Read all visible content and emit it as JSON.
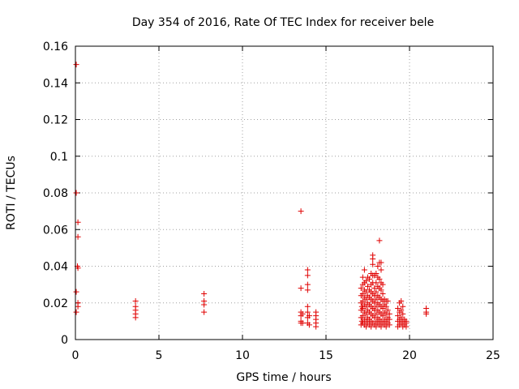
{
  "chart_data": {
    "type": "scatter",
    "title": "Day 354 of 2016, Rate Of TEC Index for receiver bele",
    "xlabel": "GPS time / hours",
    "ylabel": "ROTI / TECUs",
    "xlim": [
      0,
      25
    ],
    "ylim": [
      0,
      0.16
    ],
    "xticks": [
      0,
      5,
      10,
      15,
      20,
      25
    ],
    "yticks": [
      0,
      0.02,
      0.04,
      0.06,
      0.08,
      0.1,
      0.12,
      0.14,
      0.16
    ],
    "xtick_labels": [
      "0",
      "5",
      "10",
      "15",
      "20",
      "25"
    ],
    "ytick_labels": [
      "0",
      "0.02",
      "0.04",
      "0.06",
      "0.08",
      "0.1",
      "0.12",
      "0.14",
      "0.16"
    ],
    "grid": true,
    "marker": "+",
    "color": "#e00000",
    "points": [
      [
        0.05,
        0.15
      ],
      [
        0.05,
        0.08
      ],
      [
        0.05,
        0.026
      ],
      [
        0.05,
        0.015
      ],
      [
        0.15,
        0.064
      ],
      [
        0.15,
        0.056
      ],
      [
        0.12,
        0.04
      ],
      [
        0.15,
        0.039
      ],
      [
        0.15,
        0.02
      ],
      [
        0.15,
        0.018
      ],
      [
        3.6,
        0.021
      ],
      [
        3.6,
        0.018
      ],
      [
        3.6,
        0.016
      ],
      [
        3.6,
        0.014
      ],
      [
        3.6,
        0.012
      ],
      [
        7.7,
        0.025
      ],
      [
        7.7,
        0.021
      ],
      [
        7.7,
        0.019
      ],
      [
        7.7,
        0.015
      ],
      [
        13.5,
        0.07
      ],
      [
        13.5,
        0.028
      ],
      [
        13.5,
        0.015
      ],
      [
        13.5,
        0.013
      ],
      [
        13.5,
        0.01
      ],
      [
        13.5,
        0.009
      ],
      [
        13.6,
        0.014
      ],
      [
        13.6,
        0.009
      ],
      [
        13.9,
        0.038
      ],
      [
        13.9,
        0.035
      ],
      [
        13.9,
        0.03
      ],
      [
        13.9,
        0.027
      ],
      [
        13.9,
        0.018
      ],
      [
        13.9,
        0.015
      ],
      [
        13.9,
        0.012
      ],
      [
        13.9,
        0.009
      ],
      [
        14.0,
        0.008
      ],
      [
        14.0,
        0.013
      ],
      [
        14.4,
        0.015
      ],
      [
        14.4,
        0.013
      ],
      [
        14.4,
        0.011
      ],
      [
        14.4,
        0.009
      ],
      [
        14.4,
        0.007
      ],
      [
        17.1,
        0.008
      ],
      [
        17.1,
        0.012
      ],
      [
        17.1,
        0.016
      ],
      [
        17.1,
        0.02
      ],
      [
        17.1,
        0.024
      ],
      [
        17.1,
        0.028
      ],
      [
        17.15,
        0.01
      ],
      [
        17.15,
        0.018
      ],
      [
        17.2,
        0.009
      ],
      [
        17.2,
        0.013
      ],
      [
        17.2,
        0.017
      ],
      [
        17.2,
        0.021
      ],
      [
        17.2,
        0.025
      ],
      [
        17.2,
        0.03
      ],
      [
        17.2,
        0.034
      ],
      [
        17.3,
        0.008
      ],
      [
        17.3,
        0.011
      ],
      [
        17.3,
        0.015
      ],
      [
        17.3,
        0.019
      ],
      [
        17.3,
        0.023
      ],
      [
        17.3,
        0.027
      ],
      [
        17.3,
        0.031
      ],
      [
        17.3,
        0.038
      ],
      [
        17.4,
        0.007
      ],
      [
        17.4,
        0.01
      ],
      [
        17.4,
        0.014
      ],
      [
        17.4,
        0.018
      ],
      [
        17.4,
        0.022
      ],
      [
        17.4,
        0.026
      ],
      [
        17.4,
        0.032
      ],
      [
        17.5,
        0.009
      ],
      [
        17.5,
        0.012
      ],
      [
        17.5,
        0.016
      ],
      [
        17.5,
        0.02
      ],
      [
        17.5,
        0.024
      ],
      [
        17.5,
        0.029
      ],
      [
        17.5,
        0.034
      ],
      [
        17.6,
        0.008
      ],
      [
        17.6,
        0.011
      ],
      [
        17.6,
        0.015
      ],
      [
        17.6,
        0.019
      ],
      [
        17.6,
        0.023
      ],
      [
        17.6,
        0.027
      ],
      [
        17.6,
        0.033
      ],
      [
        17.7,
        0.007
      ],
      [
        17.7,
        0.01
      ],
      [
        17.7,
        0.014
      ],
      [
        17.7,
        0.018
      ],
      [
        17.7,
        0.022
      ],
      [
        17.7,
        0.026
      ],
      [
        17.7,
        0.03
      ],
      [
        17.7,
        0.036
      ],
      [
        17.8,
        0.009
      ],
      [
        17.8,
        0.013
      ],
      [
        17.8,
        0.017
      ],
      [
        17.8,
        0.021
      ],
      [
        17.8,
        0.025
      ],
      [
        17.8,
        0.031
      ],
      [
        17.8,
        0.035
      ],
      [
        17.8,
        0.041
      ],
      [
        17.8,
        0.044
      ],
      [
        17.8,
        0.046
      ],
      [
        17.9,
        0.008
      ],
      [
        17.9,
        0.012
      ],
      [
        17.9,
        0.016
      ],
      [
        17.9,
        0.02
      ],
      [
        17.9,
        0.024
      ],
      [
        17.9,
        0.028
      ],
      [
        17.9,
        0.035
      ],
      [
        18.0,
        0.007
      ],
      [
        18.0,
        0.01
      ],
      [
        18.0,
        0.014
      ],
      [
        18.0,
        0.018
      ],
      [
        18.0,
        0.022
      ],
      [
        18.0,
        0.026
      ],
      [
        18.0,
        0.031
      ],
      [
        18.0,
        0.036
      ],
      [
        18.1,
        0.009
      ],
      [
        18.1,
        0.012
      ],
      [
        18.1,
        0.016
      ],
      [
        18.1,
        0.02
      ],
      [
        18.1,
        0.024
      ],
      [
        18.1,
        0.029
      ],
      [
        18.1,
        0.034
      ],
      [
        18.1,
        0.04
      ],
      [
        18.2,
        0.008
      ],
      [
        18.2,
        0.011
      ],
      [
        18.2,
        0.015
      ],
      [
        18.2,
        0.019
      ],
      [
        18.2,
        0.023
      ],
      [
        18.2,
        0.028
      ],
      [
        18.2,
        0.033
      ],
      [
        18.2,
        0.042
      ],
      [
        18.2,
        0.054
      ],
      [
        18.3,
        0.007
      ],
      [
        18.3,
        0.01
      ],
      [
        18.3,
        0.014
      ],
      [
        18.3,
        0.018
      ],
      [
        18.3,
        0.022
      ],
      [
        18.3,
        0.027
      ],
      [
        18.3,
        0.031
      ],
      [
        18.3,
        0.038
      ],
      [
        18.3,
        0.042
      ],
      [
        18.4,
        0.009
      ],
      [
        18.4,
        0.013
      ],
      [
        18.4,
        0.017
      ],
      [
        18.4,
        0.021
      ],
      [
        18.4,
        0.025
      ],
      [
        18.4,
        0.03
      ],
      [
        18.5,
        0.008
      ],
      [
        18.5,
        0.011
      ],
      [
        18.5,
        0.015
      ],
      [
        18.5,
        0.019
      ],
      [
        18.5,
        0.022
      ],
      [
        18.6,
        0.007
      ],
      [
        18.6,
        0.01
      ],
      [
        18.6,
        0.014
      ],
      [
        18.6,
        0.018
      ],
      [
        18.6,
        0.021
      ],
      [
        18.7,
        0.009
      ],
      [
        18.7,
        0.012
      ],
      [
        18.7,
        0.016
      ],
      [
        18.7,
        0.021
      ],
      [
        18.8,
        0.008
      ],
      [
        18.8,
        0.011
      ],
      [
        18.8,
        0.014
      ],
      [
        19.3,
        0.007
      ],
      [
        19.3,
        0.01
      ],
      [
        19.3,
        0.013
      ],
      [
        19.3,
        0.017
      ],
      [
        19.4,
        0.008
      ],
      [
        19.4,
        0.011
      ],
      [
        19.4,
        0.015
      ],
      [
        19.4,
        0.02
      ],
      [
        19.5,
        0.009
      ],
      [
        19.5,
        0.012
      ],
      [
        19.5,
        0.016
      ],
      [
        19.5,
        0.021
      ],
      [
        19.6,
        0.007
      ],
      [
        19.6,
        0.01
      ],
      [
        19.6,
        0.014
      ],
      [
        19.6,
        0.018
      ],
      [
        19.7,
        0.008
      ],
      [
        19.7,
        0.011
      ],
      [
        19.8,
        0.007
      ],
      [
        19.8,
        0.009
      ],
      [
        19.8,
        0.01
      ],
      [
        21.0,
        0.017
      ],
      [
        21.0,
        0.015
      ],
      [
        21.0,
        0.014
      ]
    ]
  }
}
